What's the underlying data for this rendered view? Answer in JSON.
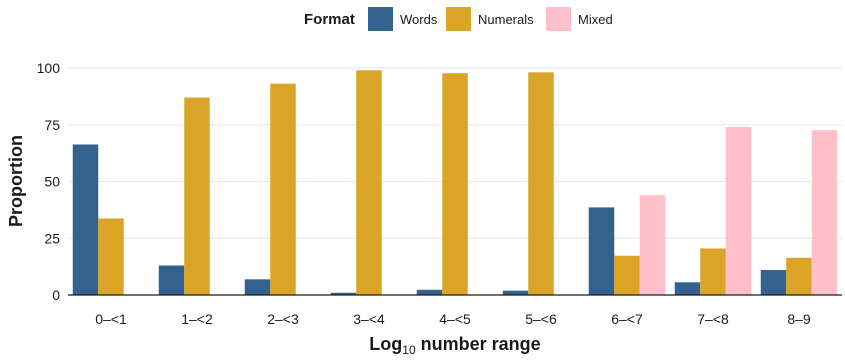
{
  "chart_data": {
    "type": "bar",
    "title": "",
    "xlabel": {
      "prefix": "Log",
      "subscript": "10",
      "suffix": " number range"
    },
    "ylabel": "Proportion",
    "ylim": [
      0,
      100
    ],
    "yticks": [
      0,
      25,
      50,
      75,
      100
    ],
    "grid": true,
    "legend": {
      "title": "Format",
      "placement": "top-center"
    },
    "categories": [
      "0–<1",
      "1–<2",
      "2–<3",
      "3–<4",
      "4–<5",
      "5–<6",
      "6–<7",
      "7–<8",
      "8–9"
    ],
    "series": [
      {
        "name": "Words",
        "color": "#34628E",
        "values": [
          66.3,
          13.0,
          6.9,
          1.0,
          2.3,
          1.9,
          38.6,
          5.6,
          11.0
        ]
      },
      {
        "name": "Numerals",
        "color": "#DAA526",
        "values": [
          33.7,
          87.0,
          93.1,
          99.0,
          97.7,
          98.1,
          17.3,
          20.5,
          16.4
        ]
      },
      {
        "name": "Mixed",
        "color": "#FFC0CB",
        "values": [
          null,
          null,
          null,
          null,
          null,
          null,
          44.0,
          74.0,
          72.6
        ]
      }
    ]
  }
}
